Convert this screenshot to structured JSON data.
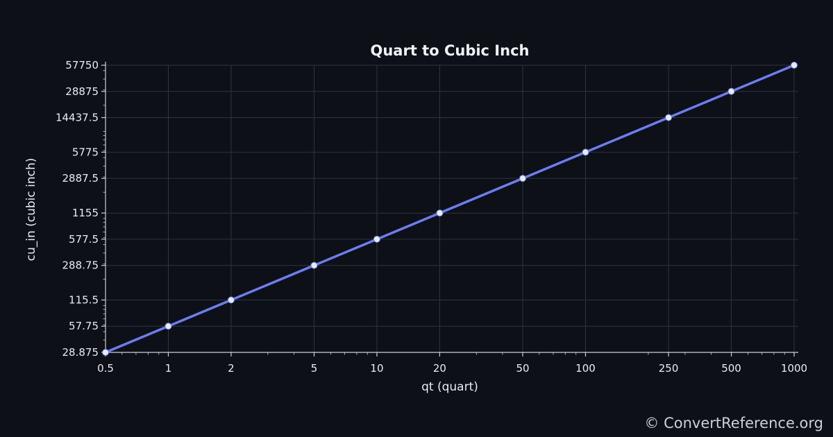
{
  "chart_data": {
    "type": "line",
    "title": "Quart to Cubic Inch",
    "xlabel": "qt (quart)",
    "ylabel": "cu_in (cubic inch)",
    "xscale": "log",
    "yscale": "log",
    "grid": true,
    "xlim": [
      0.5,
      1000
    ],
    "ylim": [
      28.875,
      57750
    ],
    "x_ticks": [
      0.5,
      1,
      2,
      5,
      10,
      20,
      50,
      100,
      250,
      500,
      1000
    ],
    "x_tick_labels": [
      "0.5",
      "1",
      "2",
      "5",
      "10",
      "20",
      "50",
      "100",
      "250",
      "500",
      "1000"
    ],
    "y_ticks": [
      28.875,
      57.75,
      115.5,
      288.75,
      577.5,
      1155,
      2887.5,
      5775,
      14437.5,
      28875,
      57750
    ],
    "y_tick_labels": [
      "28.875",
      "57.75",
      "115.5",
      "288.75",
      "577.5",
      "1155",
      "2887.5",
      "5775",
      "14437.5",
      "28875",
      "57750"
    ],
    "series": [
      {
        "color": "#6c7df0",
        "marker_color": "#e6edf3",
        "x": [
          0.5,
          1,
          2,
          5,
          10,
          20,
          50,
          100,
          250,
          500,
          1000
        ],
        "y": [
          28.875,
          57.75,
          115.5,
          288.75,
          577.5,
          1155,
          2887.5,
          5775,
          14437.5,
          28875,
          57750
        ]
      }
    ]
  },
  "watermark": "© ConvertReference.org",
  "colors": {
    "background": "#0d1117",
    "grid": "#2d3540",
    "axis": "#c9d1d9",
    "text": "#e6edf3",
    "line": "#6c7df0"
  }
}
